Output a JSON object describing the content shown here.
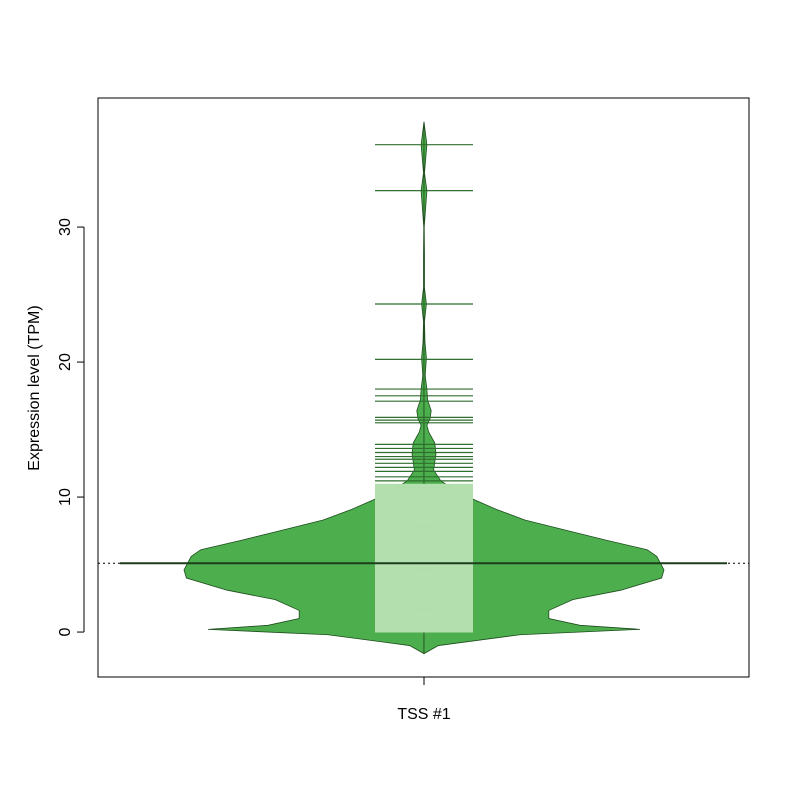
{
  "chart_data": {
    "type": "beanplot",
    "categories": [
      "TSS #1"
    ],
    "y_label": "Expression level (TPM)",
    "ylim": [
      -3.33,
      39.56
    ],
    "yticks": [
      0,
      10,
      20,
      30
    ],
    "bean_color": "#4cae4c",
    "density": {
      "y": [
        -1.6,
        -1.0,
        -0.2,
        0.2,
        0.5,
        1.0,
        1.6,
        2.4,
        3.1,
        4.0,
        4.6,
        5.6,
        6.1,
        6.8,
        7.5,
        8.3,
        9.1,
        9.8,
        10.5,
        11.2,
        12.0,
        12.6,
        13.2,
        14.0,
        14.8,
        15.3,
        15.8,
        16.4,
        17.2,
        18.0,
        19.0,
        20.3,
        21.5,
        23.0,
        24.3,
        25.5,
        28.0,
        30.0,
        32.7,
        34.0,
        36.1,
        37.8
      ],
      "values": [
        0,
        0.06,
        0.4,
        0.9,
        0.65,
        0.52,
        0.52,
        0.62,
        0.82,
        0.99,
        1.0,
        0.97,
        0.93,
        0.76,
        0.6,
        0.42,
        0.3,
        0.21,
        0.13,
        0.07,
        0.04,
        0.045,
        0.05,
        0.045,
        0.02,
        0.012,
        0.025,
        0.03,
        0.015,
        0.012,
        0.005,
        0.01,
        0.004,
        0.002,
        0.01,
        0.002,
        0.002,
        0.001,
        0.012,
        0.002,
        0.012,
        0
      ]
    },
    "dense_lines": {
      "color": "#b3dfae",
      "values": [
        0.1,
        0.35,
        0.6,
        0.85,
        1.1,
        1.35,
        1.6,
        1.85,
        2.1,
        2.35,
        2.6,
        2.85,
        3.1,
        3.35,
        3.6,
        3.85,
        4.1,
        4.35,
        4.6,
        4.85,
        5.1,
        5.35,
        5.6,
        5.85,
        6.1,
        6.35,
        6.6,
        6.85,
        7.1,
        7.35,
        7.6,
        7.85,
        8.1,
        8.35,
        8.6,
        8.85,
        9.1,
        9.35,
        9.6,
        9.85,
        10.1,
        10.35,
        10.6,
        10.85
      ]
    },
    "bean_lines": {
      "color": "#2f6f2f",
      "values": [
        36.1,
        32.7,
        24.3,
        20.2,
        18.0,
        17.5,
        17.1,
        15.9,
        15.7,
        15.5,
        13.9,
        13.6,
        13.3,
        13.0,
        12.8,
        12.5,
        12.2,
        11.9,
        11.5,
        11.2
      ]
    },
    "median": 5.1,
    "overall_line": 5.1
  }
}
